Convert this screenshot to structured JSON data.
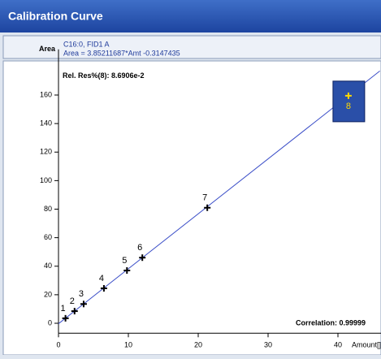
{
  "window": {
    "title": "Calibration Curve"
  },
  "header": {
    "compound": "C16:0, FID1 A",
    "equation": "Area = 3.85211687*Amt -0.3147435"
  },
  "chart_data": {
    "type": "scatter",
    "y_label": "Area",
    "x_label": "Amount[]",
    "annotations": {
      "residual": "Rel. Res%(8): 8.6906e-2",
      "correlation": "Correlation: 0.99999"
    },
    "x": [
      1.0,
      2.3,
      3.6,
      6.5,
      9.8,
      12.0,
      21.3,
      41.5
    ],
    "values": [
      3.5,
      8.5,
      13.5,
      24.5,
      37,
      46,
      81,
      159.5
    ],
    "point_labels": [
      "1",
      "2",
      "3",
      "4",
      "5",
      "6",
      "7",
      "8"
    ],
    "highlight_index": 7,
    "color": "#000000",
    "line_color": "#3c4fc8",
    "fit": {
      "slope": 3.85211687,
      "intercept": -0.3147435
    },
    "xlim": [
      0,
      46
    ],
    "ylim": [
      -7,
      192
    ],
    "xticks": [
      0,
      10,
      20,
      30,
      40
    ],
    "yticks": [
      0,
      20,
      40,
      60,
      80,
      100,
      120,
      140,
      160
    ]
  }
}
